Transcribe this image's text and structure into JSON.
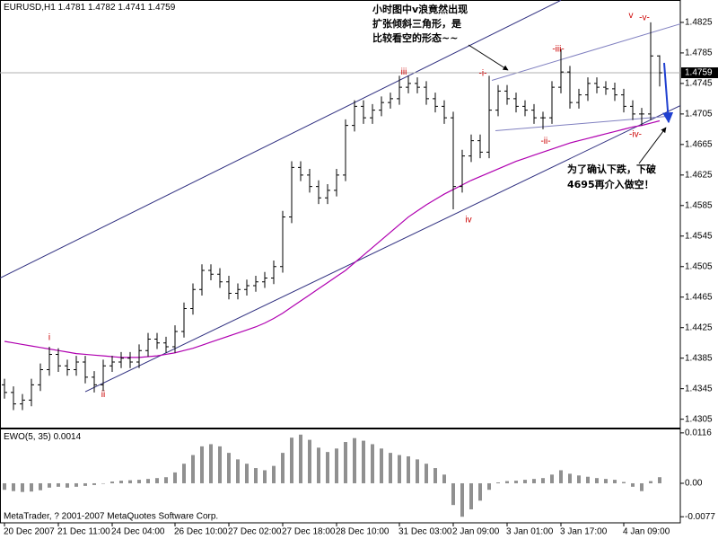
{
  "chart_data": [
    {
      "type": "ohlc",
      "symbol": "EURUSD,H1",
      "color": "#000000",
      "categories": [
        "20 Dec 2007",
        null,
        null,
        null,
        null,
        null,
        "21 Dec 11:00",
        null,
        null,
        null,
        null,
        null,
        "24 Dec 04:00",
        null,
        null,
        null,
        null,
        null,
        null,
        "26 Dec 10:00",
        null,
        null,
        null,
        null,
        null,
        "27 Dec 02:00",
        null,
        null,
        null,
        null,
        null,
        "27 Dec 18:00",
        null,
        null,
        null,
        null,
        null,
        "28 Dec 10:00",
        null,
        null,
        null,
        null,
        null,
        null,
        "31 Dec 03:00",
        null,
        null,
        null,
        null,
        null,
        "2 Jan 09:00",
        null,
        null,
        null,
        null,
        null,
        "3 Jan 01:00",
        null,
        null,
        null,
        null,
        null,
        "3 Jan 17:00",
        null,
        null,
        null,
        null,
        null,
        null,
        "4 Jan 09:00",
        null,
        null,
        null,
        null
      ],
      "open": [
        1.435,
        1.434,
        1.4325,
        1.433,
        1.435,
        1.437,
        1.439,
        1.4375,
        1.437,
        1.438,
        1.436,
        1.435,
        1.4375,
        1.438,
        1.4385,
        1.438,
        1.4395,
        1.441,
        1.4405,
        1.44,
        1.442,
        1.445,
        1.4475,
        1.45,
        1.4495,
        1.4485,
        1.447,
        1.4475,
        1.448,
        1.4485,
        1.449,
        1.4505,
        1.457,
        1.4635,
        1.4625,
        1.461,
        1.4595,
        1.4605,
        1.4625,
        1.469,
        1.4715,
        1.47,
        1.471,
        1.472,
        1.4725,
        1.474,
        1.4745,
        1.474,
        1.4725,
        1.4715,
        1.47,
        1.461,
        1.465,
        1.467,
        1.4655,
        1.471,
        1.4735,
        1.4725,
        1.4715,
        1.471,
        1.47,
        1.47,
        1.474,
        1.476,
        1.472,
        1.473,
        1.4745,
        1.474,
        1.4738,
        1.473,
        1.4715,
        1.4705,
        1.4705,
        1.4781
      ],
      "high": [
        1.4358,
        1.4348,
        1.4338,
        1.4358,
        1.4378,
        1.44,
        1.4398,
        1.4383,
        1.4388,
        1.4388,
        1.4368,
        1.4383,
        1.4388,
        1.4393,
        1.4393,
        1.4403,
        1.4418,
        1.4418,
        1.4413,
        1.4428,
        1.4458,
        1.4483,
        1.4508,
        1.4508,
        1.4503,
        1.4493,
        1.4483,
        1.4488,
        1.4493,
        1.4498,
        1.4513,
        1.4578,
        1.4643,
        1.4643,
        1.4633,
        1.4618,
        1.4613,
        1.4633,
        1.4698,
        1.4723,
        1.4723,
        1.4718,
        1.4728,
        1.4733,
        1.4755,
        1.4755,
        1.4753,
        1.4748,
        1.4733,
        1.4723,
        1.4708,
        1.4658,
        1.4678,
        1.4678,
        1.4755,
        1.4743,
        1.4743,
        1.4733,
        1.4723,
        1.4718,
        1.4708,
        1.4748,
        1.479,
        1.4768,
        1.4738,
        1.4753,
        1.4753,
        1.4748,
        1.4746,
        1.4738,
        1.4723,
        1.4713,
        1.4825,
        1.4782
      ],
      "low": [
        1.4332,
        1.4317,
        1.4317,
        1.4322,
        1.4342,
        1.4362,
        1.4367,
        1.4362,
        1.4362,
        1.4352,
        1.434,
        1.4342,
        1.4367,
        1.4372,
        1.4372,
        1.4372,
        1.4387,
        1.4397,
        1.4392,
        1.4392,
        1.4412,
        1.4442,
        1.4467,
        1.4487,
        1.4477,
        1.4462,
        1.4462,
        1.4467,
        1.4472,
        1.4477,
        1.4482,
        1.4497,
        1.4562,
        1.4617,
        1.4602,
        1.4587,
        1.4587,
        1.4597,
        1.4617,
        1.4682,
        1.4692,
        1.4692,
        1.4702,
        1.4712,
        1.4717,
        1.4732,
        1.4732,
        1.4717,
        1.4707,
        1.4692,
        1.458,
        1.4602,
        1.4642,
        1.4647,
        1.4647,
        1.4702,
        1.4717,
        1.4707,
        1.4702,
        1.4692,
        1.4685,
        1.4692,
        1.4732,
        1.4712,
        1.4712,
        1.4722,
        1.4732,
        1.473,
        1.4722,
        1.4707,
        1.4697,
        1.469,
        1.4697,
        1.4741
      ],
      "close": [
        1.434,
        1.4325,
        1.433,
        1.435,
        1.437,
        1.439,
        1.4375,
        1.437,
        1.438,
        1.436,
        1.435,
        1.4375,
        1.438,
        1.4385,
        1.438,
        1.4395,
        1.441,
        1.4405,
        1.44,
        1.442,
        1.445,
        1.4475,
        1.45,
        1.4495,
        1.4485,
        1.447,
        1.4475,
        1.448,
        1.4485,
        1.449,
        1.4505,
        1.457,
        1.4635,
        1.4625,
        1.461,
        1.4595,
        1.4605,
        1.4625,
        1.469,
        1.4715,
        1.47,
        1.471,
        1.472,
        1.4725,
        1.474,
        1.4745,
        1.474,
        1.4725,
        1.4715,
        1.47,
        1.461,
        1.465,
        1.467,
        1.4655,
        1.471,
        1.4735,
        1.4725,
        1.4715,
        1.471,
        1.47,
        1.47,
        1.474,
        1.476,
        1.472,
        1.473,
        1.4745,
        1.474,
        1.4738,
        1.473,
        1.4715,
        1.4705,
        1.4705,
        1.4781,
        1.4759
      ],
      "moving_average": {
        "color": "#b000b0",
        "values": [
          1.4407,
          1.4405,
          1.4403,
          1.4401,
          1.4399,
          1.4397,
          1.4395,
          1.4393,
          1.4391,
          1.439,
          1.4389,
          1.4388,
          1.4387,
          1.4386,
          1.4386,
          1.4386,
          1.4387,
          1.4388,
          1.439,
          1.4392,
          1.4395,
          1.4398,
          1.4402,
          1.4406,
          1.441,
          1.4414,
          1.4418,
          1.4422,
          1.4426,
          1.4431,
          1.4437,
          1.4444,
          1.4452,
          1.446,
          1.4468,
          1.4476,
          1.4484,
          1.4492,
          1.45,
          1.451,
          1.452,
          1.453,
          1.454,
          1.455,
          1.456,
          1.457,
          1.4578,
          1.4586,
          1.4593,
          1.46,
          1.4606,
          1.4612,
          1.4618,
          1.4623,
          1.4628,
          1.4633,
          1.4638,
          1.4643,
          1.4647,
          1.4651,
          1.4655,
          1.4659,
          1.4663,
          1.4667,
          1.467,
          1.4673,
          1.4676,
          1.4679,
          1.4682,
          1.4685,
          1.4688,
          1.469,
          1.4693,
          1.4696
        ]
      },
      "trendlines": [
        {
          "color": "#303080",
          "bars": [
            -0.5,
            62
          ],
          "prices": [
            1.449,
            1.4854
          ]
        },
        {
          "color": "#303080",
          "bars": [
            9,
            75.3
          ],
          "prices": [
            1.4341,
            1.4716
          ]
        },
        {
          "color": "#8080c0",
          "bars": [
            54.3,
            77
          ],
          "prices": [
            1.4749,
            1.4829
          ]
        },
        {
          "color": "#8080c0",
          "bars": [
            54.7,
            74
          ],
          "prices": [
            1.4683,
            1.4702
          ]
        }
      ],
      "wave_labels": [
        {
          "text": "i",
          "bar": 5,
          "price": 1.4412,
          "color": "#cc0000"
        },
        {
          "text": "ii",
          "bar": 11,
          "price": 1.4337,
          "color": "#cc0000"
        },
        {
          "text": "iii",
          "bar": 44.5,
          "price": 1.476,
          "color": "#cc0000"
        },
        {
          "text": "iv",
          "bar": 51.7,
          "price": 1.4566,
          "color": "#cc0000"
        },
        {
          "text": "v",
          "bar": 69.8,
          "price": 1.4834,
          "color": "#cc0000"
        },
        {
          "text": "-i-",
          "bar": 53.3,
          "price": 1.4758,
          "color": "#cc0000"
        },
        {
          "text": "-ii-",
          "bar": 60.3,
          "price": 1.4669,
          "color": "#cc0000"
        },
        {
          "text": "-iii-",
          "bar": 61.7,
          "price": 1.479,
          "color": "#cc0000"
        },
        {
          "text": "-iv-",
          "bar": 70.3,
          "price": 1.4678,
          "color": "#cc0000"
        },
        {
          "text": "-v-",
          "bar": 71.3,
          "price": 1.4831,
          "color": "#cc0000"
        }
      ],
      "annotations": [
        [
          "小时图中v浪竟然出现",
          "扩张倾斜三角形，是",
          "比较看空的形态~~"
        ],
        [
          "为了确认下跌，下破",
          "4695再介入做空！"
        ]
      ],
      "ylim": [
        1.4294,
        1.4852
      ],
      "yticks": [
        1.4305,
        1.4345,
        1.4385,
        1.4425,
        1.4465,
        1.4505,
        1.4545,
        1.4585,
        1.4625,
        1.4665,
        1.4705,
        1.4745,
        1.4785,
        1.4825
      ]
    },
    {
      "type": "histogram",
      "title": "EWO(5, 35)",
      "color": "#909090",
      "values": [
        -0.0015,
        -0.0018,
        -0.002,
        -0.0019,
        -0.0016,
        -0.001,
        -0.0008,
        -0.001,
        -0.0008,
        -0.0006,
        -0.0004,
        0.0,
        0.0004,
        0.0006,
        0.0007,
        0.0008,
        0.001,
        0.0012,
        0.0014,
        0.0025,
        0.0045,
        0.0065,
        0.0085,
        0.009,
        0.0085,
        0.007,
        0.0055,
        0.0045,
        0.0035,
        0.003,
        0.004,
        0.007,
        0.0105,
        0.0112,
        0.01,
        0.0082,
        0.0072,
        0.008,
        0.0095,
        0.0104,
        0.0098,
        0.009,
        0.008,
        0.007,
        0.0065,
        0.0062,
        0.0055,
        0.0045,
        0.0035,
        0.002,
        -0.005,
        -0.0077,
        -0.006,
        -0.004,
        -0.0015,
        0.0002,
        0.0005,
        0.0006,
        0.0008,
        0.001,
        0.0012,
        0.002,
        0.003,
        0.0022,
        0.0018,
        0.0015,
        0.0012,
        0.001,
        0.0008,
        0.0003,
        -0.0008,
        -0.0018,
        0.0005,
        0.0014
      ],
      "ylim": [
        -0.0091,
        0.0124
      ],
      "yticks": [
        0.0116,
        {
          "value": 0,
          "label": "0.00"
        },
        -0.0077
      ]
    }
  ],
  "footer": "MetaTrader, ? 2001-2007 MetaQuotes Software Corp."
}
